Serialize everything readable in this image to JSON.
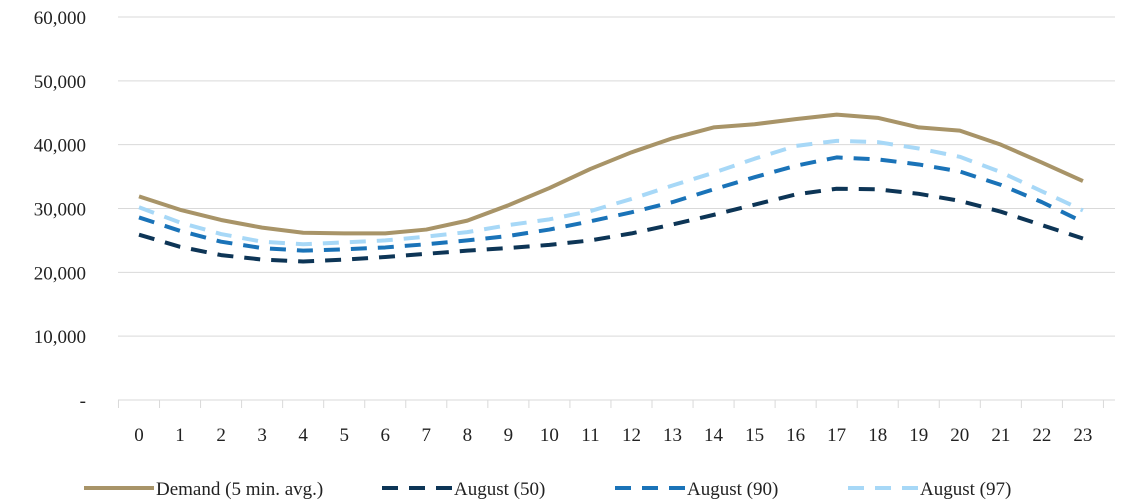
{
  "chart_data": {
    "type": "line",
    "title": "",
    "xlabel": "",
    "ylabel": "",
    "x": [
      0,
      1,
      2,
      3,
      4,
      5,
      6,
      7,
      8,
      9,
      10,
      11,
      12,
      13,
      14,
      15,
      16,
      17,
      18,
      19,
      20,
      21,
      22,
      23
    ],
    "x_tick_labels": [
      "0",
      "1",
      "2",
      "3",
      "4",
      "5",
      "6",
      "7",
      "8",
      "9",
      "10",
      "11",
      "12",
      "13",
      "14",
      "15",
      "16",
      "17",
      "18",
      "19",
      "20",
      "21",
      "22",
      "23"
    ],
    "ylim": [
      0,
      60000
    ],
    "y_ticks": [
      0,
      10000,
      20000,
      30000,
      40000,
      50000,
      60000
    ],
    "y_tick_labels": [
      "-",
      "10,000",
      "20,000",
      "30,000",
      "40,000",
      "50,000",
      "60,000"
    ],
    "grid": "horizontal",
    "legend_position": "bottom",
    "series": [
      {
        "name": "Demand (5 min. avg.)",
        "color": "#a89468",
        "dash": "solid",
        "values": [
          31900,
          29800,
          28200,
          27000,
          26200,
          26100,
          26100,
          26700,
          28100,
          30500,
          33200,
          36200,
          38800,
          41000,
          42700,
          43200,
          44000,
          44700,
          44200,
          42700,
          42200,
          40000,
          37200,
          34300
        ]
      },
      {
        "name": "August (50)",
        "color": "#0d3556",
        "dash": "dashed",
        "values": [
          25900,
          24000,
          22700,
          22000,
          21700,
          22000,
          22400,
          22900,
          23400,
          23800,
          24300,
          25000,
          26100,
          27500,
          29000,
          30600,
          32200,
          33100,
          33000,
          32300,
          31200,
          29500,
          27400,
          25300
        ]
      },
      {
        "name": "August (90)",
        "color": "#1a73b8",
        "dash": "dashed",
        "values": [
          28600,
          26500,
          24800,
          23800,
          23400,
          23600,
          23900,
          24400,
          25000,
          25700,
          26700,
          28000,
          29400,
          31000,
          33000,
          34900,
          36700,
          38000,
          37700,
          36900,
          35800,
          33700,
          31000,
          27900
        ]
      },
      {
        "name": "August (97)",
        "color": "#a7d8f7",
        "dash": "dashed",
        "values": [
          30200,
          27800,
          26000,
          24800,
          24400,
          24700,
          25000,
          25600,
          26300,
          27400,
          28300,
          29600,
          31500,
          33600,
          35600,
          37800,
          39800,
          40600,
          40400,
          39400,
          38100,
          35700,
          32700,
          29700
        ]
      }
    ]
  }
}
